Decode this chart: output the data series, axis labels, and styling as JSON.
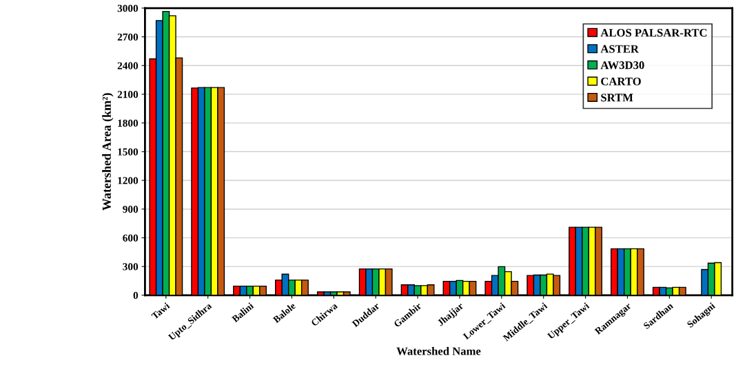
{
  "chart_data": {
    "type": "bar",
    "xlabel": "Watershed Name",
    "ylabel": "Watershed Area (km²)",
    "categories": [
      "Tawi",
      "Upto_Sidhra",
      "Balini",
      "Balole",
      "Chirwa",
      "Duddar",
      "Gambir",
      "Jhajjar",
      "Lower_Tawi",
      "Middle_Tawi",
      "Upper_Tawi",
      "Ramnagar",
      "Sardhan",
      "Sohagni"
    ],
    "series": [
      {
        "name": "ALOS PALSAR-RTC",
        "color": "#ff0000",
        "values": [
          2470,
          2165,
          95,
          158,
          35,
          275,
          108,
          145,
          145,
          206,
          710,
          485,
          82,
          null
        ]
      },
      {
        "name": "ASTER",
        "color": "#0070c0",
        "values": [
          2870,
          2170,
          95,
          220,
          35,
          275,
          108,
          145,
          206,
          211,
          710,
          485,
          82,
          268
        ]
      },
      {
        "name": "AW3D30",
        "color": "#00b050",
        "values": [
          2965,
          2170,
          95,
          158,
          35,
          275,
          100,
          154,
          298,
          211,
          710,
          485,
          77,
          335
        ]
      },
      {
        "name": "CARTO",
        "color": "#ffff00",
        "values": [
          2920,
          2170,
          95,
          158,
          35,
          275,
          100,
          145,
          246,
          221,
          710,
          485,
          82,
          340
        ]
      },
      {
        "name": "SRTM",
        "color": "#c55a11",
        "values": [
          2480,
          2170,
          95,
          158,
          35,
          275,
          108,
          145,
          145,
          206,
          710,
          485,
          82,
          null
        ]
      }
    ],
    "ylim": [
      0,
      3000
    ],
    "yticks": [
      0,
      300,
      600,
      900,
      1200,
      1500,
      1800,
      2100,
      2400,
      2700,
      3000
    ],
    "grid": "y",
    "legend": "top right"
  }
}
